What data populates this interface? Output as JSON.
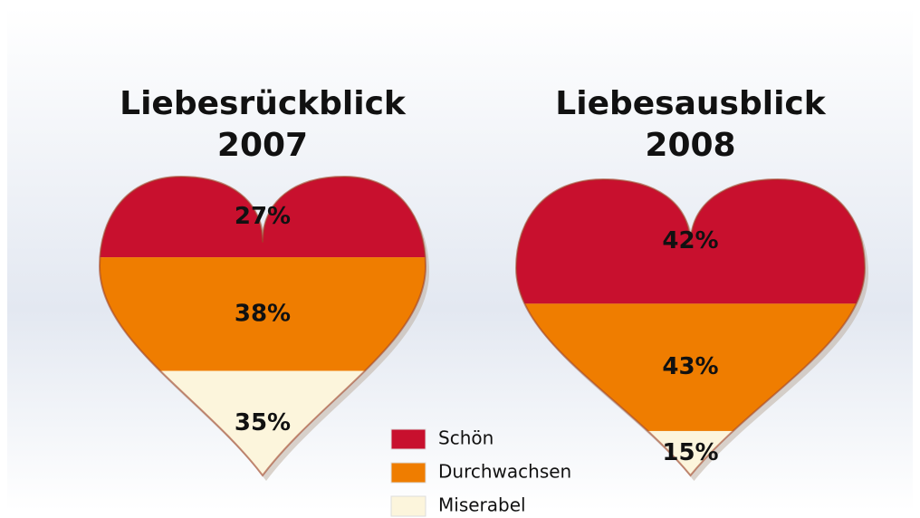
{
  "chart_data": [
    {
      "type": "heart",
      "title": "Liebesrückblick",
      "subtitle": "2007",
      "categories": [
        "Schön",
        "Durchwachsen",
        "Miserabel"
      ],
      "values": [
        27,
        38,
        35
      ],
      "value_labels": [
        "27%",
        "38%",
        "35%"
      ],
      "colors": [
        "#c8102e",
        "#ef7d00",
        "#fcf5dc"
      ]
    },
    {
      "type": "heart",
      "title": "Liebesausblick",
      "subtitle": "2008",
      "categories": [
        "Schön",
        "Durchwachsen",
        "Miserabel"
      ],
      "values": [
        42,
        43,
        15
      ],
      "value_labels": [
        "42%",
        "43%",
        "15%"
      ],
      "colors": [
        "#c8102e",
        "#ef7d00",
        "#fcf5dc"
      ]
    }
  ]
}
